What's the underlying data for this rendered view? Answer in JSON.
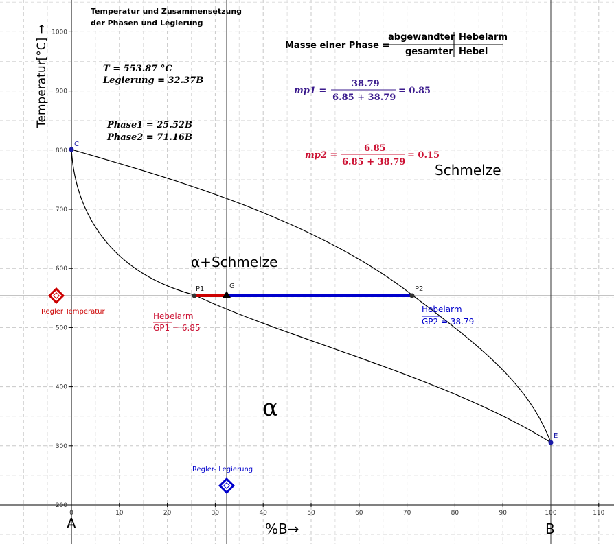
{
  "window": {
    "title_line1": "Temperatur und Zusammensetzung",
    "title_line2": "der Phasen und Legierung"
  },
  "axes": {
    "ylabel": "Temperatur[°C] →",
    "xlabel": "%B→",
    "left_corner": "A",
    "right_corner": "B",
    "x_ticks": [
      "0",
      "10",
      "20",
      "30",
      "40",
      "50",
      "60",
      "70",
      "80",
      "90",
      "100",
      "110"
    ],
    "y_ticks": [
      "200",
      "300",
      "400",
      "500",
      "600",
      "700",
      "800",
      "900",
      "1000"
    ],
    "xlim": [
      0,
      113
    ],
    "ylim": [
      200,
      1050
    ]
  },
  "readout": {
    "temperature": "T = 553.87 °C",
    "alloy": "Legierung = 32.37B",
    "phase1": "Phase1 = 25.52B",
    "phase2": "Phase2 = 71.16B"
  },
  "formula": {
    "lhs": "Masse einer Phase =",
    "num_left": "abgewandter",
    "num_right": "Hebelarm",
    "den_left": "gesamter",
    "den_right": "Hebel",
    "mp1_label": "mp1 =",
    "mp1_num": "38.79",
    "mp1_den": "6.85 + 38.79",
    "mp1_result": "= 0.85",
    "mp2_label": "mp2 =",
    "mp2_num": "6.85",
    "mp2_den": "6.85 + 38.79",
    "mp2_result": "= 0.15"
  },
  "regions": {
    "melt": "Schmelze",
    "two_phase": "α+Schmelze",
    "alpha": "α"
  },
  "points": {
    "C": "C",
    "E": "E",
    "P1": "P1",
    "P2": "P2",
    "G": "G"
  },
  "levers": {
    "gp1_title": "Hebelarm",
    "gp1_value": "GP1 = 6.85",
    "gp2_title": "Hebelarm",
    "gp2_value": "GP2 = 38.79"
  },
  "controls": {
    "temp_slider_label": "Regler Temperatur",
    "alloy_slider_label": "Regler- Legierung"
  },
  "chart_data": {
    "type": "line",
    "xlabel": "%B→",
    "ylabel": "Temperatur[°C] →",
    "xlim": [
      0,
      113
    ],
    "ylim": [
      200,
      1050
    ],
    "grid": true,
    "series": [
      {
        "x": [
          0,
          10,
          25.52,
          50,
          71.16,
          90,
          100
        ],
        "y": [
          800,
          745,
          553.87,
          570,
          553.87,
          420,
          305
        ]
      },
      {
        "x": [
          0,
          5,
          25.52,
          50,
          71.16,
          90,
          100
        ],
        "y": [
          800,
          650,
          553.87,
          460,
          553.87,
          340,
          305
        ]
      }
    ],
    "points": [
      {
        "label": "C",
        "x": 0,
        "y": 800
      },
      {
        "label": "E",
        "x": 100,
        "y": 305
      },
      {
        "label": "P1",
        "x": 25.52,
        "y": 553.87
      },
      {
        "label": "P2",
        "x": 71.16,
        "y": 553.87
      },
      {
        "label": "G",
        "x": 32.37,
        "y": 553.87
      }
    ],
    "colors": {
      "lever1": "#cc0000",
      "lever2": "#0000cc",
      "points": "#1a1aa6",
      "mp1": "#3a1a8c",
      "mp2": "#cc1133",
      "slider_temp": "#cc0000",
      "slider_alloy": "#0000cc"
    }
  }
}
